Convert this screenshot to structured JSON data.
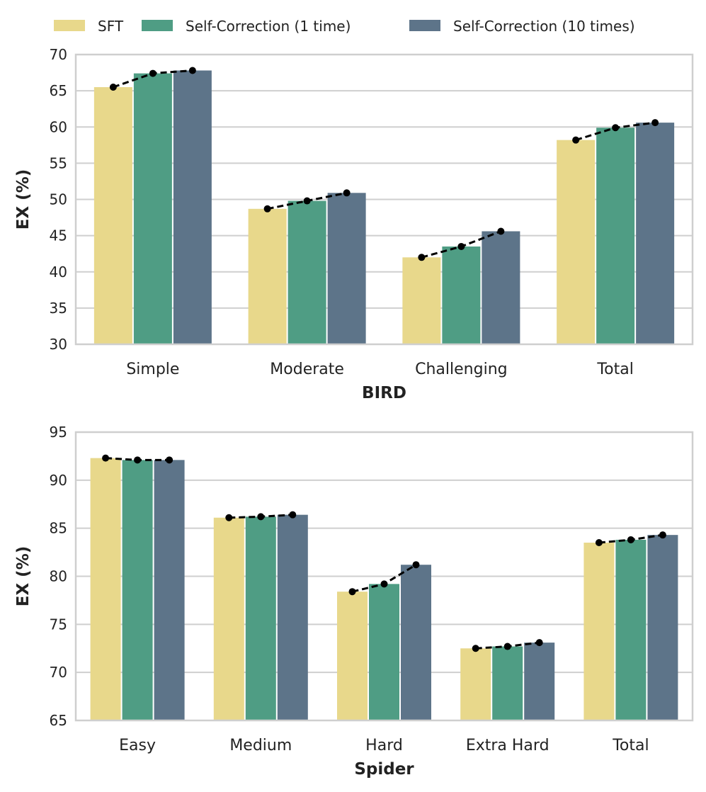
{
  "legend": [
    {
      "label": "SFT",
      "color": "#e8d88b"
    },
    {
      "label": "Self-Correction (1 time)",
      "color": "#4f9d84"
    },
    {
      "label": "Self-Correction (10 times)",
      "color": "#5d7489"
    }
  ],
  "chart_data": [
    {
      "type": "bar",
      "title": "",
      "xlabel": "BIRD",
      "ylabel": "EX (%)",
      "ylim": [
        30,
        70
      ],
      "yticks": [
        30,
        35,
        40,
        45,
        50,
        55,
        60,
        65,
        70
      ],
      "categories": [
        "Simple",
        "Moderate",
        "Challenging",
        "Total"
      ],
      "series": [
        {
          "name": "SFT",
          "values": [
            65.5,
            48.7,
            42.0,
            58.2
          ]
        },
        {
          "name": "Self-Correction (1 time)",
          "values": [
            67.4,
            49.8,
            43.5,
            59.9
          ]
        },
        {
          "name": "Self-Correction (10 times)",
          "values": [
            67.8,
            50.9,
            45.6,
            60.6
          ]
        }
      ],
      "grid": true,
      "overlay": "dashed line with points connecting series values per category"
    },
    {
      "type": "bar",
      "title": "",
      "xlabel": "Spider",
      "ylabel": "EX (%)",
      "ylim": [
        65,
        95
      ],
      "yticks": [
        65,
        70,
        75,
        80,
        85,
        90,
        95
      ],
      "categories": [
        "Easy",
        "Medium",
        "Hard",
        "Extra Hard",
        "Total"
      ],
      "series": [
        {
          "name": "SFT",
          "values": [
            92.3,
            86.1,
            78.4,
            72.5,
            83.5
          ]
        },
        {
          "name": "Self-Correction (1 time)",
          "values": [
            92.1,
            86.2,
            79.2,
            72.7,
            83.8
          ]
        },
        {
          "name": "Self-Correction (10 times)",
          "values": [
            92.1,
            86.4,
            81.2,
            73.1,
            84.3
          ]
        }
      ],
      "grid": true,
      "overlay": "dashed line with points connecting series values per category"
    }
  ]
}
